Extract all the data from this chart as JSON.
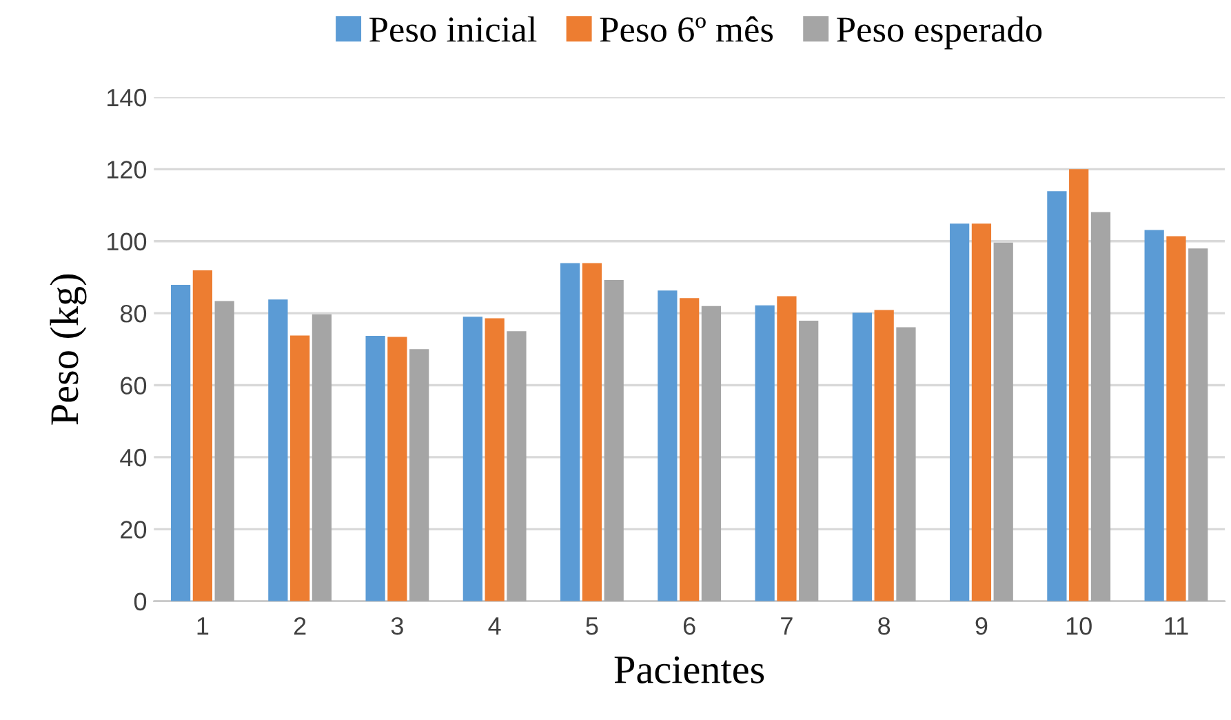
{
  "chart_data": {
    "type": "bar",
    "xlabel": "Pacientes",
    "ylabel": "Peso (kg)",
    "categories": [
      "1",
      "2",
      "3",
      "4",
      "5",
      "6",
      "7",
      "8",
      "9",
      "10",
      "11"
    ],
    "series": [
      {
        "name": "Peso inicial",
        "color": "#5b9bd5",
        "values": [
          87.9,
          83.8,
          73.7,
          79.0,
          93.9,
          86.3,
          82.2,
          80.1,
          104.9,
          113.9,
          103.1
        ]
      },
      {
        "name": "Peso 6º mês",
        "color": "#ed7d31",
        "values": [
          91.9,
          73.8,
          73.4,
          78.6,
          93.9,
          84.2,
          84.7,
          80.9,
          104.9,
          120.0,
          101.4
        ]
      },
      {
        "name": "Peso esperado",
        "color": "#a5a5a5",
        "values": [
          83.4,
          79.7,
          70.0,
          75.0,
          89.2,
          82.0,
          77.9,
          76.1,
          99.6,
          108.1,
          98.0
        ]
      }
    ],
    "ylim": [
      0,
      140
    ],
    "yticks": [
      0,
      20,
      40,
      60,
      80,
      100,
      120,
      140
    ],
    "grid": "y",
    "legend": "top"
  }
}
